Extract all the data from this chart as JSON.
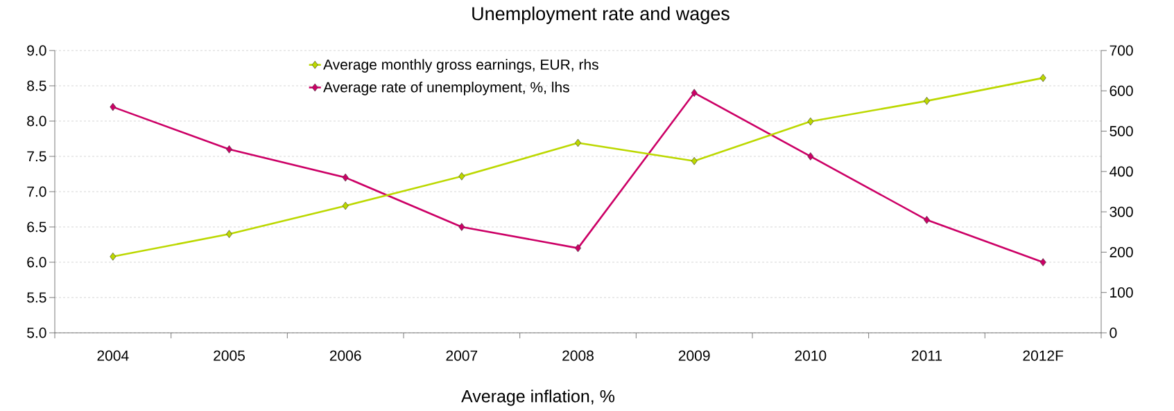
{
  "chart_data": {
    "type": "line",
    "title": "Unemployment rate and wages",
    "xlabel": "Average inflation, %",
    "categories": [
      "2004",
      "2005",
      "2006",
      "2007",
      "2008",
      "2009",
      "2010",
      "2011",
      "2012F"
    ],
    "series": [
      {
        "name": "Average monthly gross earnings, EUR, rhs",
        "color": "#bcd800",
        "axis": "y2",
        "values": [
          189,
          245,
          315,
          388,
          471,
          426,
          524,
          575,
          632
        ]
      },
      {
        "name": "Average rate of unemployment, %, lhs",
        "color": "#cc0066",
        "values": [
          8.2,
          7.6,
          7.2,
          6.5,
          6.2,
          8.4,
          7.5,
          6.6,
          6.0
        ]
      }
    ],
    "ylim": [
      5,
      9
    ],
    "yticks": [
      {
        "value": 5,
        "label": "5.0"
      },
      {
        "value": 5.5,
        "label": "5.5"
      },
      {
        "value": 6,
        "label": "6.0"
      },
      {
        "value": 6.5,
        "label": "6.5"
      },
      {
        "value": 7,
        "label": "7.0"
      },
      {
        "value": 7.5,
        "label": "7.5"
      },
      {
        "value": 8,
        "label": "8.0"
      },
      {
        "value": 8.5,
        "label": "8.5"
      },
      {
        "value": 9,
        "label": "9.0"
      }
    ],
    "y2lim": [
      0,
      700
    ],
    "y2ticks": [
      0,
      100,
      200,
      300,
      400,
      500,
      600,
      700
    ],
    "grid": "y",
    "legend": "top",
    "marker": "diamond",
    "line_style": "solid"
  }
}
